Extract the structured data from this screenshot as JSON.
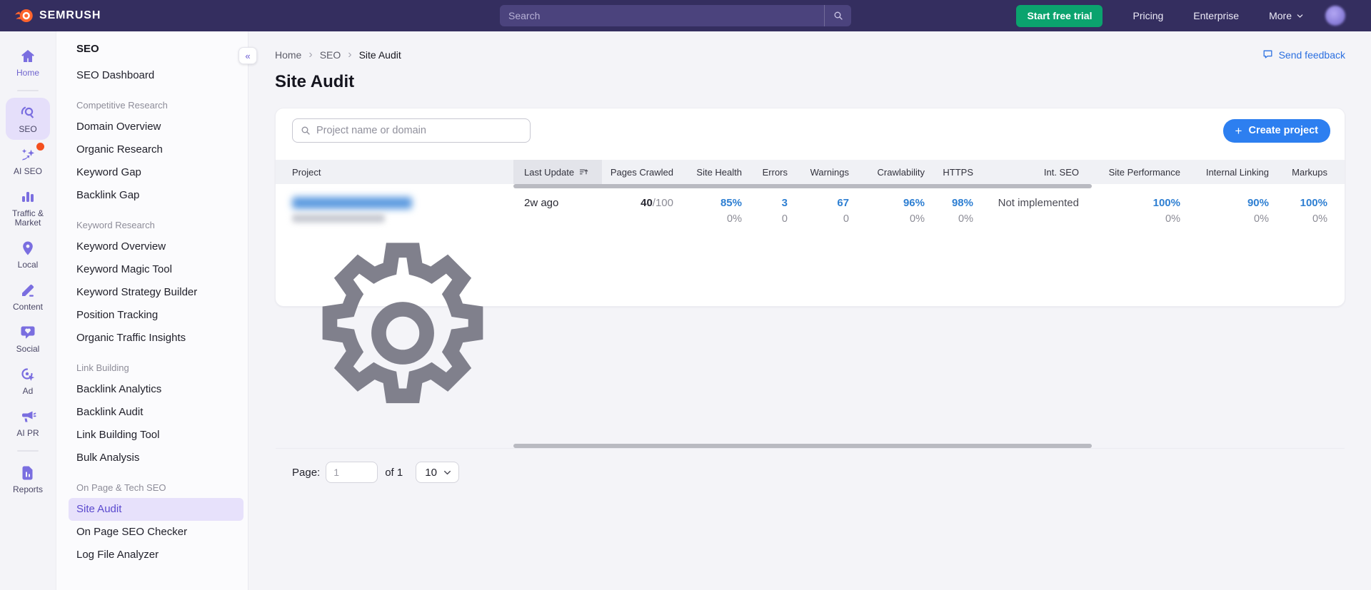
{
  "colors": {
    "navbar_bg": "#342E5F",
    "accent_blue": "#2D7FF0",
    "metric_blue": "#2E7FD2",
    "trial_green": "#0BA36E",
    "notification_orange": "#F4501F",
    "brand_purple": "#6B5BD2",
    "active_pill": "#E7E1FB"
  },
  "navbar": {
    "brand": "SEMRUSH",
    "search_placeholder": "Search",
    "start_trial_label": "Start free trial",
    "pricing_label": "Pricing",
    "enterprise_label": "Enterprise",
    "more_label": "More"
  },
  "rail": {
    "items": [
      {
        "label": "Home",
        "icon": "home-icon"
      },
      {
        "label": "SEO",
        "icon": "seo-icon",
        "active": true
      },
      {
        "label": "AI SEO",
        "icon": "ai-seo-icon",
        "dot": true
      },
      {
        "label": "Traffic & Market",
        "icon": "traffic-market-icon"
      },
      {
        "label": "Local",
        "icon": "local-icon"
      },
      {
        "label": "Content",
        "icon": "content-icon"
      },
      {
        "label": "Social",
        "icon": "social-icon"
      },
      {
        "label": "Ad",
        "icon": "ad-icon"
      },
      {
        "label": "AI PR",
        "icon": "ai-pr-icon"
      },
      {
        "label": "Reports",
        "icon": "reports-icon"
      }
    ]
  },
  "sidebar": {
    "title": "SEO",
    "active_item": "Site Audit",
    "groups": [
      {
        "items": [
          "SEO Dashboard"
        ]
      },
      {
        "header": "Competitive Research",
        "items": [
          "Domain Overview",
          "Organic Research",
          "Keyword Gap",
          "Backlink Gap"
        ]
      },
      {
        "header": "Keyword Research",
        "items": [
          "Keyword Overview",
          "Keyword Magic Tool",
          "Keyword Strategy Builder",
          "Position Tracking",
          "Organic Traffic Insights"
        ]
      },
      {
        "header": "Link Building",
        "items": [
          "Backlink Analytics",
          "Backlink Audit",
          "Link Building Tool",
          "Bulk Analysis"
        ]
      },
      {
        "header": "On Page & Tech SEO",
        "items": [
          "Site Audit",
          "On Page SEO Checker",
          "Log File Analyzer"
        ]
      }
    ]
  },
  "main": {
    "breadcrumb": [
      "Home",
      "SEO",
      "Site Audit"
    ],
    "send_feedback_label": "Send feedback",
    "title": "Site Audit",
    "project_search_placeholder": "Project name or domain",
    "create_project_label": "Create project",
    "table": {
      "project_header": "Project",
      "columns": [
        {
          "label": "Last Update",
          "sorted": true
        },
        {
          "label": "Pages Crawled"
        },
        {
          "label": "Site Health"
        },
        {
          "label": "Errors"
        },
        {
          "label": "Warnings"
        },
        {
          "label": "Crawlability"
        },
        {
          "label": "HTTPS"
        },
        {
          "label": "Int. SEO"
        },
        {
          "label": "Site Performance"
        },
        {
          "label": "Internal Linking"
        },
        {
          "label": "Markups"
        }
      ],
      "row": {
        "project_redacted": true,
        "last_update": "2w ago",
        "pages_crawled": "40",
        "pages_crawled_total": "/100",
        "site_health": {
          "value": "85%",
          "sub": "0%"
        },
        "errors": {
          "value": "3",
          "sub": "0"
        },
        "warnings": {
          "value": "67",
          "sub": "0"
        },
        "crawlability": {
          "value": "96%",
          "sub": "0%"
        },
        "https": {
          "value": "98%",
          "sub": "0%"
        },
        "int_seo": "Not implemented",
        "site_performance": {
          "value": "100%",
          "sub": "0%"
        },
        "internal_linking": {
          "value": "90%",
          "sub": "0%"
        },
        "markups": {
          "value": "100%",
          "sub": "0%"
        }
      }
    },
    "pagination": {
      "label": "Page:",
      "page_value": "1",
      "of_label": "of 1",
      "per_page": "10"
    }
  }
}
